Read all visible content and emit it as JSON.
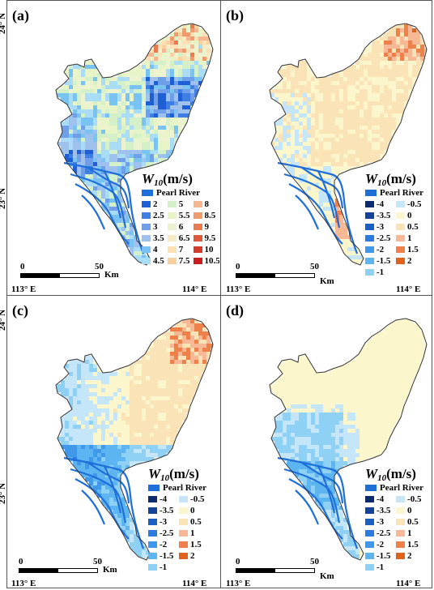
{
  "panels": [
    {
      "label": "(a)",
      "legend_title": "W",
      "legend_sub": "10",
      "legend_unit": "(m/s)",
      "river_label": "Pearl River",
      "legend_items": [
        {
          "label": "2",
          "color": "#1f5fd6"
        },
        {
          "label": "2.5",
          "color": "#3f7fe3"
        },
        {
          "label": "3",
          "color": "#6f9fe9"
        },
        {
          "label": "3.5",
          "color": "#9fc1ee"
        },
        {
          "label": "4",
          "color": "#78c3f2"
        },
        {
          "label": "4.5",
          "color": "#a9dcf7"
        },
        {
          "label": "5",
          "color": "#d4f0c8"
        },
        {
          "label": "5.5",
          "color": "#e7f4c7"
        },
        {
          "label": "6",
          "color": "#eef3cf"
        },
        {
          "label": "6.5",
          "color": "#f6ebc4"
        },
        {
          "label": "7",
          "color": "#fbe1b5"
        },
        {
          "label": "7.5",
          "color": "#f9d1a0"
        },
        {
          "label": "8",
          "color": "#f6b790"
        },
        {
          "label": "8.5",
          "color": "#f19a6c"
        },
        {
          "label": "9",
          "color": "#e87a4d"
        },
        {
          "label": "9.5",
          "color": "#e05a3a"
        },
        {
          "label": "10",
          "color": "#d63a2a"
        },
        {
          "label": "10.5",
          "color": "#c81e1e"
        }
      ],
      "legend_cols": 3,
      "scale": {
        "zero": "0",
        "fifty": "50",
        "unit": "Km"
      },
      "lat_label": "23° N",
      "lat_top": "24° N",
      "lon_left": "113° E",
      "lon_right": "114° E"
    },
    {
      "label": "(b)",
      "legend_title": "W",
      "legend_sub": "10",
      "legend_unit": "(m/s)",
      "river_label": "Pearl River",
      "legend_items": [
        {
          "label": "-4",
          "color": "#0b2a6f"
        },
        {
          "label": "-3.5",
          "color": "#13449a"
        },
        {
          "label": "-3",
          "color": "#1b5fc2"
        },
        {
          "label": "-2.5",
          "color": "#2b7be0"
        },
        {
          "label": "-2",
          "color": "#3f98ea"
        },
        {
          "label": "-1.5",
          "color": "#5cb4f0"
        },
        {
          "label": "-1",
          "color": "#8fd0f5"
        },
        {
          "label": "-0.5",
          "color": "#c4e6f8"
        },
        {
          "label": "0",
          "color": "#fbf6cc"
        },
        {
          "label": "0.5",
          "color": "#fbe3b8"
        },
        {
          "label": "1",
          "color": "#f7b896"
        },
        {
          "label": "1.5",
          "color": "#ee8049"
        },
        {
          "label": "2",
          "color": "#e0621c"
        }
      ],
      "legend_cols": 2,
      "scale": {
        "zero": "0",
        "fifty": "50",
        "unit": "Km"
      },
      "lat_label": "",
      "lat_top": "",
      "lon_left": "113° E",
      "lon_right": "114° E"
    },
    {
      "label": "(c)",
      "legend_title": "W",
      "legend_sub": "10",
      "legend_unit": "(m/s)",
      "river_label": "Pearl River",
      "legend_items": [
        {
          "label": "-4",
          "color": "#0b2a6f"
        },
        {
          "label": "-3.5",
          "color": "#13449a"
        },
        {
          "label": "-3",
          "color": "#1b5fc2"
        },
        {
          "label": "-2.5",
          "color": "#2b7be0"
        },
        {
          "label": "-2",
          "color": "#3f98ea"
        },
        {
          "label": "-1.5",
          "color": "#5cb4f0"
        },
        {
          "label": "-1",
          "color": "#8fd0f5"
        },
        {
          "label": "-0.5",
          "color": "#c4e6f8"
        },
        {
          "label": "0",
          "color": "#fbf6cc"
        },
        {
          "label": "0.5",
          "color": "#fbe3b8"
        },
        {
          "label": "1",
          "color": "#f7b896"
        },
        {
          "label": "1.5",
          "color": "#ee8049"
        },
        {
          "label": "2",
          "color": "#e0621c"
        }
      ],
      "legend_cols": 2,
      "scale": {
        "zero": "0",
        "fifty": "50",
        "unit": "Km"
      },
      "lat_label": "23° N",
      "lat_top": "24° N",
      "lon_left": "113° E",
      "lon_right": "114° E"
    },
    {
      "label": "(d)",
      "legend_title": "W",
      "legend_sub": "10",
      "legend_unit": "(m/s)",
      "river_label": "Pearl River",
      "legend_items": [
        {
          "label": "-4",
          "color": "#0b2a6f"
        },
        {
          "label": "-3.5",
          "color": "#13449a"
        },
        {
          "label": "-3",
          "color": "#1b5fc2"
        },
        {
          "label": "-2.5",
          "color": "#2b7be0"
        },
        {
          "label": "-2",
          "color": "#3f98ea"
        },
        {
          "label": "-1.5",
          "color": "#5cb4f0"
        },
        {
          "label": "-1",
          "color": "#8fd0f5"
        },
        {
          "label": "-0.5",
          "color": "#c4e6f8"
        },
        {
          "label": "0",
          "color": "#fbf6cc"
        },
        {
          "label": "0.5",
          "color": "#fbe3b8"
        },
        {
          "label": "1",
          "color": "#f7b896"
        },
        {
          "label": "1.5",
          "color": "#ee8049"
        },
        {
          "label": "2",
          "color": "#e0621c"
        }
      ],
      "legend_cols": 2,
      "scale": {
        "zero": "0",
        "fifty": "50",
        "unit": "Km"
      },
      "lat_label": "",
      "lat_top": "",
      "lon_left": "113° E",
      "lon_right": "114° E"
    }
  ],
  "colors": {
    "river": "#1e6fd9",
    "outline": "#333333"
  }
}
